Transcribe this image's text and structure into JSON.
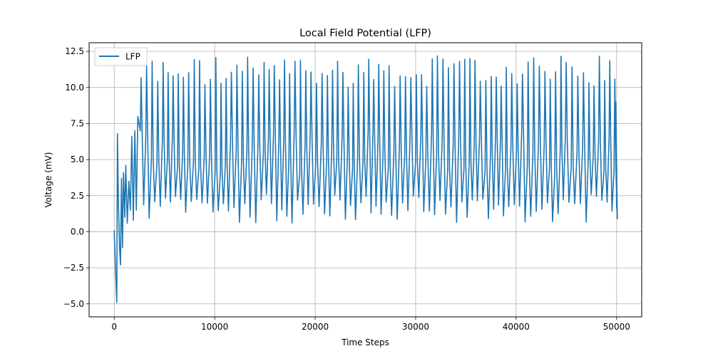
{
  "chart_data": {
    "type": "line",
    "title": "Local Field Potential (LFP)",
    "xlabel": "Time Steps",
    "ylabel": "Voltage (mV)",
    "xlim": [
      -2500,
      52500
    ],
    "ylim": [
      -5.9,
      13.1
    ],
    "x_ticks": [
      0,
      10000,
      20000,
      30000,
      40000,
      50000
    ],
    "x_tick_labels": [
      "0",
      "10000",
      "20000",
      "30000",
      "40000",
      "50000"
    ],
    "y_ticks": [
      -5.0,
      -2.5,
      0.0,
      2.5,
      5.0,
      7.5,
      10.0,
      12.5
    ],
    "y_tick_labels": [
      "−5.0",
      "−2.5",
      "0.0",
      "2.5",
      "5.0",
      "7.5",
      "10.0",
      "12.5"
    ],
    "grid": true,
    "legend_position": "upper-left",
    "series": [
      {
        "name": "LFP",
        "color": "#1f77b4",
        "x_range": [
          0,
          50000
        ],
        "transient_points": [
          [
            0,
            0.1
          ],
          [
            150,
            -3.0
          ],
          [
            250,
            -4.9
          ],
          [
            320,
            6.8
          ],
          [
            420,
            2.0
          ],
          [
            520,
            -1.0
          ],
          [
            620,
            -2.3
          ],
          [
            720,
            3.7
          ],
          [
            820,
            -1.1
          ],
          [
            920,
            4.1
          ],
          [
            1050,
            1.0
          ],
          [
            1150,
            4.6
          ],
          [
            1300,
            0.6
          ],
          [
            1450,
            3.5
          ],
          [
            1600,
            1.5
          ],
          [
            1750,
            6.6
          ],
          [
            1900,
            0.8
          ],
          [
            2050,
            7.0
          ],
          [
            2200,
            1.5
          ],
          [
            2350,
            8.0
          ]
        ],
        "steady_state": {
          "start": 2500,
          "cycle_period": 530,
          "peak_min": 10.0,
          "peak_max": 12.2,
          "trough_min": 0.6,
          "trough_max": 2.6,
          "end_value": 1.6
        }
      }
    ]
  }
}
